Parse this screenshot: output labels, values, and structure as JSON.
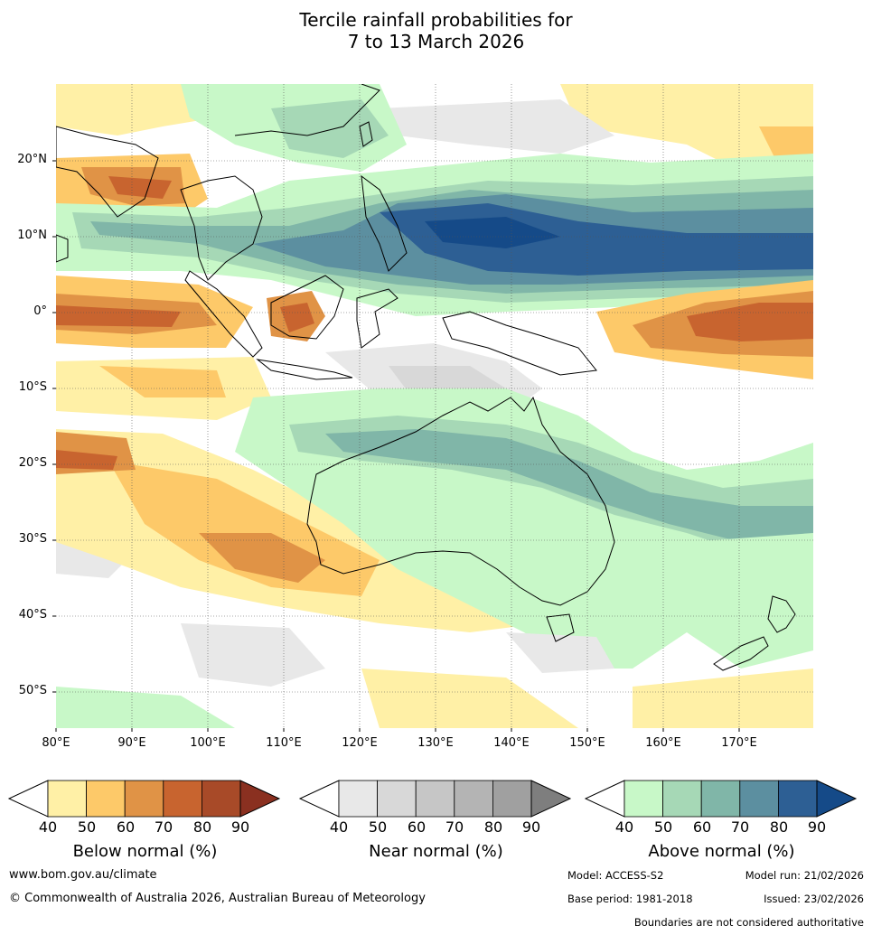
{
  "title": {
    "line1": "Tercile rainfall probabilities for",
    "line2": "7 to 13 March 2026"
  },
  "map": {
    "lon_range": [
      80,
      180
    ],
    "lat_range": [
      -55,
      30
    ],
    "lat_labels": [
      "20°N",
      "10°N",
      "0°",
      "10°S",
      "20°S",
      "30°S",
      "40°S",
      "50°S"
    ],
    "lon_labels": [
      "80°E",
      "90°E",
      "100°E",
      "110°E",
      "120°E",
      "130°E",
      "140°E",
      "150°E",
      "160°E",
      "170°E"
    ]
  },
  "legends": {
    "below": {
      "title": "Below normal (%)",
      "ticks": [
        "40",
        "50",
        "60",
        "70",
        "80",
        "90"
      ],
      "colors": [
        "#fff0a6",
        "#fdc969",
        "#e09346",
        "#c8642f",
        "#a84a28",
        "#8a3020"
      ]
    },
    "near": {
      "title": "Near normal (%)",
      "ticks": [
        "40",
        "50",
        "60",
        "70",
        "80",
        "90"
      ],
      "colors": [
        "#e8e8e8",
        "#d8d8d8",
        "#c6c6c6",
        "#b4b4b4",
        "#a0a0a0",
        "#7e7e7e"
      ]
    },
    "above": {
      "title": "Above normal (%)",
      "ticks": [
        "40",
        "50",
        "60",
        "70",
        "80",
        "90"
      ],
      "colors": [
        "#c8f8c8",
        "#a6d8b6",
        "#80b6a8",
        "#5c8fa0",
        "#2d5f94",
        "#154a88"
      ]
    }
  },
  "footer": {
    "website": "www.bom.gov.au/climate",
    "copyright": "© Commonwealth of Australia 2026, Australian Bureau of Meteorology",
    "model": "Model: ACCESS-S2",
    "model_run": "Model run: 21/02/2026",
    "base_period": "Base period: 1981-2018",
    "issued": "Issued: 23/02/2026",
    "disclaimer": "Boundaries are not considered authoritative"
  }
}
